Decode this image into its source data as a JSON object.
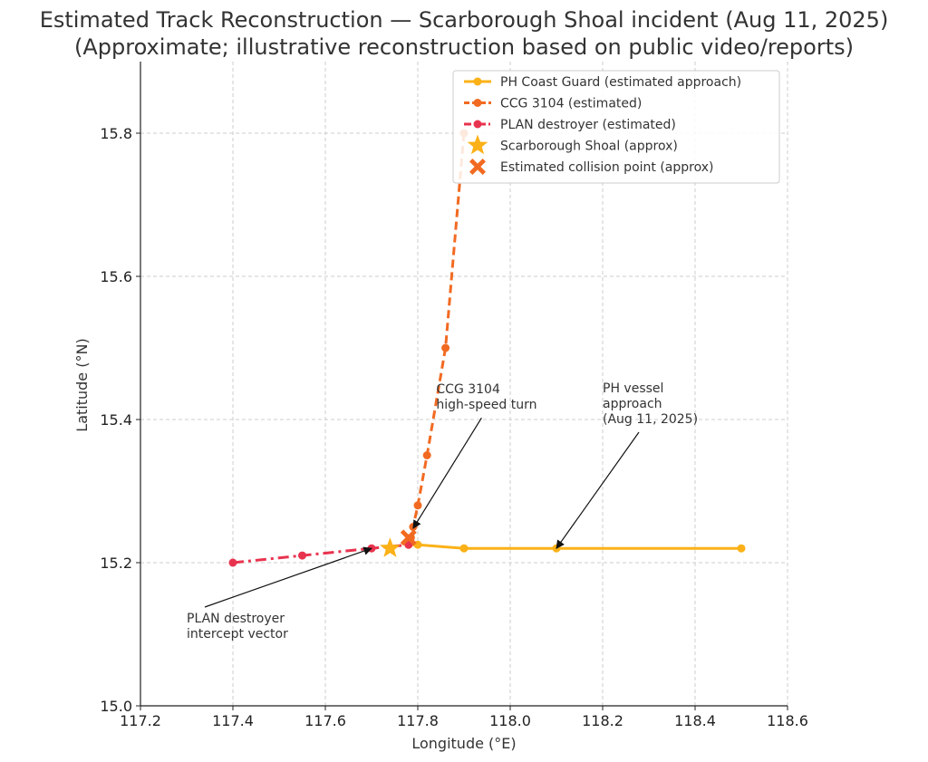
{
  "chart_data": {
    "type": "line",
    "title": "Estimated Track Reconstruction — Scarborough Shoal incident (Aug 11, 2025)",
    "subtitle": "(Approximate; illustrative reconstruction based on public video/reports)",
    "xlabel": "Longitude (°E)",
    "ylabel": "Latitude (°N)",
    "xlim": [
      117.2,
      118.6
    ],
    "ylim": [
      15.0,
      15.9
    ],
    "xticks": [
      117.2,
      117.4,
      117.6,
      117.8,
      118.0,
      118.2,
      118.4,
      118.6
    ],
    "yticks": [
      15.0,
      15.2,
      15.4,
      15.6,
      15.8
    ],
    "xtick_labels": [
      "117.2",
      "117.4",
      "117.6",
      "117.8",
      "118.0",
      "118.2",
      "118.4",
      "118.6"
    ],
    "ytick_labels": [
      "15.0",
      "15.2",
      "15.4",
      "15.6",
      "15.8"
    ],
    "grid": true,
    "legend_position": "top-right",
    "series": [
      {
        "name": "PH Coast Guard (estimated approach)",
        "color": "#FBB117",
        "dash": "solid",
        "points": [
          [
            118.5,
            15.22
          ],
          [
            118.1,
            15.22
          ],
          [
            117.9,
            15.22
          ],
          [
            117.8,
            15.225
          ],
          [
            117.78,
            15.225
          ]
        ]
      },
      {
        "name": "CCG 3104 (estimated)",
        "color": "#F26A21",
        "dash": "dashed",
        "points": [
          [
            117.9,
            15.8
          ],
          [
            117.86,
            15.5
          ],
          [
            117.82,
            15.35
          ],
          [
            117.8,
            15.28
          ],
          [
            117.79,
            15.25
          ],
          [
            117.785,
            15.235
          ]
        ]
      },
      {
        "name": "PLAN destroyer (estimated)",
        "color": "#E8334E",
        "dash": "dashdot",
        "points": [
          [
            117.4,
            15.2
          ],
          [
            117.55,
            15.21
          ],
          [
            117.7,
            15.22
          ],
          [
            117.78,
            15.225
          ]
        ]
      }
    ],
    "markers": [
      {
        "name": "Scarborough Shoal (approx)",
        "symbol": "star",
        "color": "#FBB117",
        "x": 117.74,
        "y": 15.22
      },
      {
        "name": "Estimated collision point (approx)",
        "symbol": "x",
        "color": "#F26A21",
        "x": 117.78,
        "y": 15.235
      }
    ],
    "annotations": [
      {
        "lines": [
          "CCG 3104",
          "high-speed turn"
        ],
        "text_x": 117.84,
        "text_y": 15.42,
        "arrow_to": [
          117.79,
          15.248
        ]
      },
      {
        "lines": [
          "PH vessel",
          "approach",
          "(Aug 11, 2025)"
        ],
        "text_x": 118.2,
        "text_y": 15.4,
        "arrow_to": [
          118.1,
          15.22
        ]
      },
      {
        "lines": [
          "PLAN destroyer",
          "intercept vector"
        ],
        "text_x": 117.3,
        "text_y": 15.1,
        "arrow_to": [
          117.7,
          15.22
        ]
      }
    ]
  }
}
